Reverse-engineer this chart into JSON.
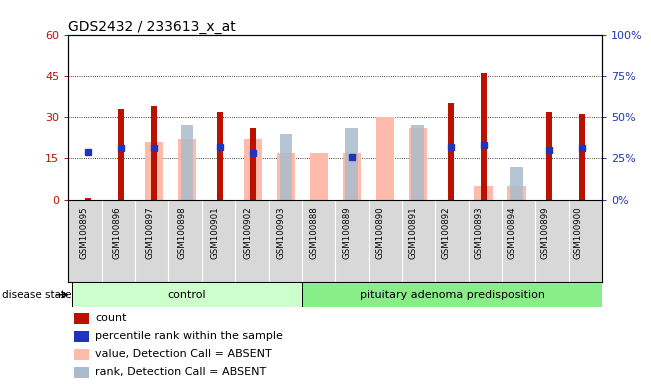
{
  "title": "GDS2432 / 233613_x_at",
  "samples": [
    "GSM100895",
    "GSM100896",
    "GSM100897",
    "GSM100898",
    "GSM100901",
    "GSM100902",
    "GSM100903",
    "GSM100888",
    "GSM100889",
    "GSM100890",
    "GSM100891",
    "GSM100892",
    "GSM100893",
    "GSM100894",
    "GSM100899",
    "GSM100900"
  ],
  "group_split": 7,
  "red_bars": [
    0.5,
    33,
    34,
    0,
    32,
    26,
    0,
    0,
    0,
    0,
    0,
    35,
    46,
    0,
    32,
    31
  ],
  "pink_bars": [
    0,
    0,
    21,
    22,
    0,
    22,
    17,
    17,
    17,
    30,
    26,
    0,
    5,
    5,
    0,
    0
  ],
  "blue_squares": [
    29,
    31,
    31,
    0,
    32,
    28,
    0,
    0,
    26,
    0,
    0,
    32,
    33,
    0,
    30,
    31
  ],
  "light_blue_bars": [
    0,
    0,
    0,
    27,
    0,
    0,
    24,
    0,
    26,
    0,
    27,
    0,
    0,
    12,
    0,
    0
  ],
  "ylim_left": [
    0,
    60
  ],
  "ylim_right": [
    0,
    100
  ],
  "yticks_left": [
    0,
    15,
    30,
    45,
    60
  ],
  "ytick_labels_left": [
    "0",
    "15",
    "30",
    "45",
    "60"
  ],
  "yticks_right": [
    0,
    25,
    50,
    75,
    100
  ],
  "ytick_labels_right": [
    "0%",
    "25%",
    "50%",
    "75%",
    "100%"
  ],
  "plot_bg": "#ffffff",
  "label_bg": "#d8d8d8",
  "red_color": "#bb1100",
  "pink_color": "#ffbbaa",
  "blue_color": "#2233bb",
  "lb_color": "#aabbcc",
  "ctrl_color": "#ccffcc",
  "aden_color": "#88ee88",
  "legend_items": [
    "count",
    "percentile rank within the sample",
    "value, Detection Call = ABSENT",
    "rank, Detection Call = ABSENT"
  ],
  "legend_colors": [
    "#bb1100",
    "#2233bb",
    "#ffbbaa",
    "#aabbcc"
  ]
}
